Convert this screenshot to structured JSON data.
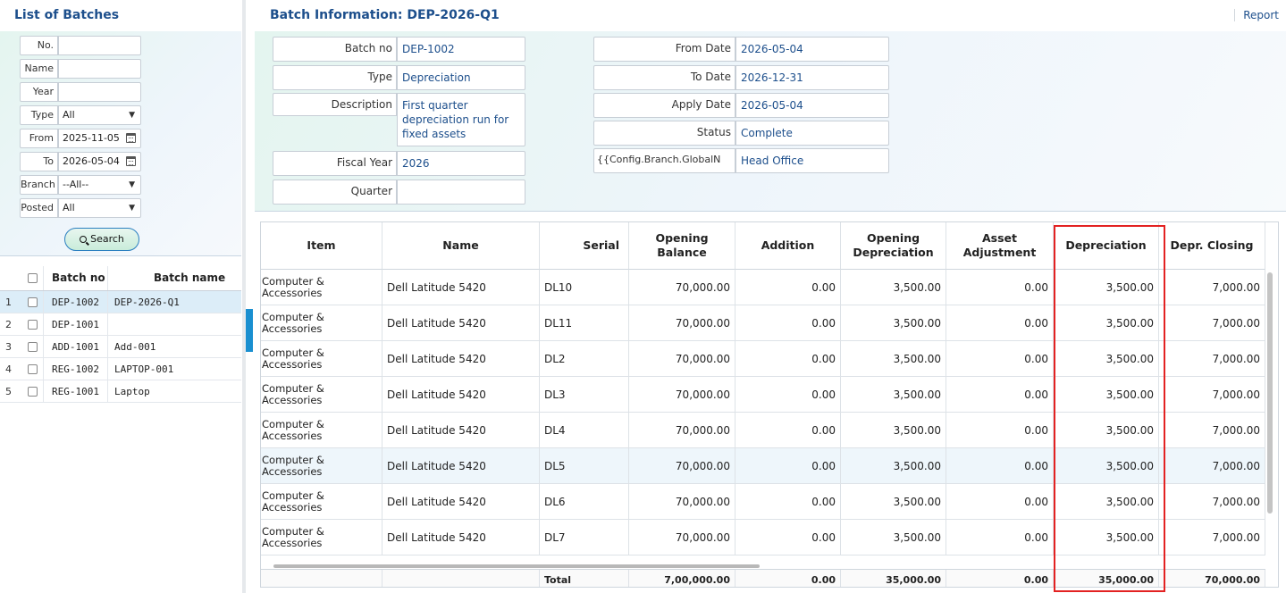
{
  "left_panel": {
    "title": "List of Batches",
    "filters": {
      "no_label": "No.",
      "no_value": "",
      "name_label": "Name",
      "name_value": "",
      "year_label": "Year",
      "year_value": "",
      "type_label": "Type",
      "type_value": "All",
      "from_label": "From",
      "from_value": "2025-11-05",
      "to_label": "To",
      "to_value": "2026-05-04",
      "branch_label": "Branch",
      "branch_value": "--All--",
      "posted_label": "Posted",
      "posted_value": "All"
    },
    "search_label": "Search",
    "list": {
      "headers": {
        "batch_no": "Batch no",
        "batch_name": "Batch name"
      },
      "rows": [
        {
          "num": "1",
          "batch_no": "DEP-1002",
          "batch_name": "DEP-2026-Q1"
        },
        {
          "num": "2",
          "batch_no": "DEP-1001",
          "batch_name": ""
        },
        {
          "num": "3",
          "batch_no": "ADD-1001",
          "batch_name": "Add-001"
        },
        {
          "num": "4",
          "batch_no": "REG-1002",
          "batch_name": "LAPTOP-001"
        },
        {
          "num": "5",
          "batch_no": "REG-1001",
          "batch_name": "Laptop"
        }
      ]
    }
  },
  "main": {
    "title": "Batch Information: DEP-2026-Q1",
    "report_label": "Report",
    "form": {
      "batch_no_label": "Batch no",
      "batch_no": "DEP-1002",
      "type_label": "Type",
      "type": "Depreciation",
      "description_label": "Description",
      "description": "First quarter depreciation run for fixed assets",
      "fiscal_year_label": "Fiscal Year",
      "fiscal_year": "2026",
      "quarter_label": "Quarter",
      "quarter": "",
      "from_date_label": "From Date",
      "from_date": "2026-05-04",
      "to_date_label": "To Date",
      "to_date": "2026-12-31",
      "apply_date_label": "Apply Date",
      "apply_date": "2026-05-04",
      "status_label": "Status",
      "status": "Complete",
      "branch_label": "{{Config.Branch.GlobalN",
      "branch": "Head Office"
    },
    "grid": {
      "headers": {
        "item": "Item",
        "name": "Name",
        "serial": "Serial",
        "opening_balance": "Opening Balance",
        "addition": "Addition",
        "opening_depreciation": "Opening Depreciation",
        "asset_adjustment": "Asset Adjustment",
        "depreciation": "Depreciation",
        "depr_closing": "Depr. Closing"
      },
      "rows": [
        {
          "item": "Computer & Accessories",
          "name": "Dell Latitude 5420",
          "serial": "DL10",
          "opening_balance": "70,000.00",
          "addition": "0.00",
          "opening_depreciation": "3,500.00",
          "asset_adjustment": "0.00",
          "depreciation": "3,500.00",
          "depr_closing": "7,000.00"
        },
        {
          "item": "Computer & Accessories",
          "name": "Dell Latitude 5420",
          "serial": "DL11",
          "opening_balance": "70,000.00",
          "addition": "0.00",
          "opening_depreciation": "3,500.00",
          "asset_adjustment": "0.00",
          "depreciation": "3,500.00",
          "depr_closing": "7,000.00"
        },
        {
          "item": "Computer & Accessories",
          "name": "Dell Latitude 5420",
          "serial": "DL2",
          "opening_balance": "70,000.00",
          "addition": "0.00",
          "opening_depreciation": "3,500.00",
          "asset_adjustment": "0.00",
          "depreciation": "3,500.00",
          "depr_closing": "7,000.00"
        },
        {
          "item": "Computer & Accessories",
          "name": "Dell Latitude 5420",
          "serial": "DL3",
          "opening_balance": "70,000.00",
          "addition": "0.00",
          "opening_depreciation": "3,500.00",
          "asset_adjustment": "0.00",
          "depreciation": "3,500.00",
          "depr_closing": "7,000.00"
        },
        {
          "item": "Computer & Accessories",
          "name": "Dell Latitude 5420",
          "serial": "DL4",
          "opening_balance": "70,000.00",
          "addition": "0.00",
          "opening_depreciation": "3,500.00",
          "asset_adjustment": "0.00",
          "depreciation": "3,500.00",
          "depr_closing": "7,000.00"
        },
        {
          "item": "Computer & Accessories",
          "name": "Dell Latitude 5420",
          "serial": "DL5",
          "opening_balance": "70,000.00",
          "addition": "0.00",
          "opening_depreciation": "3,500.00",
          "asset_adjustment": "0.00",
          "depreciation": "3,500.00",
          "depr_closing": "7,000.00"
        },
        {
          "item": "Computer & Accessories",
          "name": "Dell Latitude 5420",
          "serial": "DL6",
          "opening_balance": "70,000.00",
          "addition": "0.00",
          "opening_depreciation": "3,500.00",
          "asset_adjustment": "0.00",
          "depreciation": "3,500.00",
          "depr_closing": "7,000.00"
        },
        {
          "item": "Computer & Accessories",
          "name": "Dell Latitude 5420",
          "serial": "DL7",
          "opening_balance": "70,000.00",
          "addition": "0.00",
          "opening_depreciation": "3,500.00",
          "asset_adjustment": "0.00",
          "depreciation": "3,500.00",
          "depr_closing": "7,000.00"
        }
      ],
      "totals": {
        "label": "Total",
        "opening_balance": "7,00,000.00",
        "addition": "0.00",
        "opening_depreciation": "35,000.00",
        "asset_adjustment": "0.00",
        "depreciation": "35,000.00",
        "depr_closing": "70,000.00"
      }
    },
    "highlight_color": "#e32222"
  }
}
